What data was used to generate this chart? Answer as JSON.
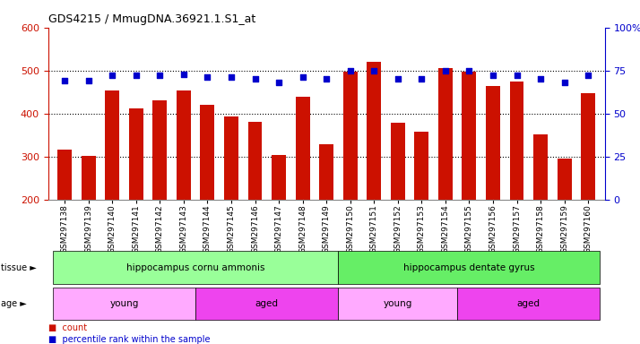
{
  "title": "GDS4215 / MmugDNA.36921.1.S1_at",
  "samples": [
    "GSM297138",
    "GSM297139",
    "GSM297140",
    "GSM297141",
    "GSM297142",
    "GSM297143",
    "GSM297144",
    "GSM297145",
    "GSM297146",
    "GSM297147",
    "GSM297148",
    "GSM297149",
    "GSM297150",
    "GSM297151",
    "GSM297152",
    "GSM297153",
    "GSM297154",
    "GSM297155",
    "GSM297156",
    "GSM297157",
    "GSM297158",
    "GSM297159",
    "GSM297160"
  ],
  "counts": [
    317,
    302,
    454,
    411,
    431,
    453,
    420,
    393,
    381,
    303,
    438,
    329,
    497,
    520,
    379,
    358,
    505,
    497,
    463,
    475,
    351,
    295,
    448
  ],
  "percentile_ranks": [
    69,
    69,
    72,
    72,
    72,
    73,
    71,
    71,
    70,
    68,
    71,
    70,
    75,
    75,
    70,
    70,
    75,
    75,
    72,
    72,
    70,
    68,
    72
  ],
  "ylim_left": [
    200,
    600
  ],
  "ylim_right": [
    0,
    100
  ],
  "yticks_left": [
    200,
    300,
    400,
    500,
    600
  ],
  "yticks_right": [
    0,
    25,
    50,
    75,
    100
  ],
  "bar_color": "#cc1100",
  "dot_color": "#0000cc",
  "bg_color": "#ffffff",
  "tissue_groups": [
    {
      "label": "hippocampus cornu ammonis",
      "start": 0,
      "end": 12,
      "color": "#99ff99"
    },
    {
      "label": "hippocampus dentate gyrus",
      "start": 12,
      "end": 23,
      "color": "#66ee66"
    }
  ],
  "age_groups": [
    {
      "label": "young",
      "start": 0,
      "end": 6,
      "color": "#ffaaff"
    },
    {
      "label": "aged",
      "start": 6,
      "end": 12,
      "color": "#ee44ee"
    },
    {
      "label": "young",
      "start": 12,
      "end": 17,
      "color": "#ffaaff"
    },
    {
      "label": "aged",
      "start": 17,
      "end": 23,
      "color": "#ee44ee"
    }
  ]
}
